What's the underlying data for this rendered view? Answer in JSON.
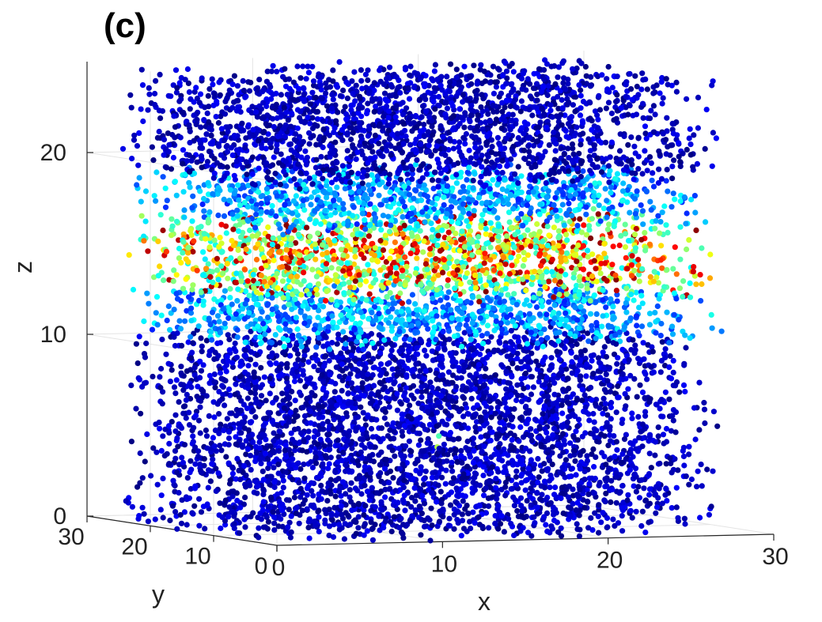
{
  "panel_label": "(c)",
  "chart_data": {
    "type": "scatter",
    "subtype": "3d-scatter",
    "title": "",
    "xlabel": "x",
    "ylabel": "y",
    "zlabel": "z",
    "xlim": [
      0,
      30
    ],
    "ylim": [
      0,
      30
    ],
    "zlim": [
      0,
      25
    ],
    "x_ticks": [
      "0",
      "10",
      "20",
      "30"
    ],
    "y_ticks": [
      "0",
      "10",
      "20",
      "30"
    ],
    "z_ticks": [
      "0",
      "10",
      "20"
    ],
    "grid": true,
    "colormap": "jet",
    "colormap_colors": [
      "#00007f",
      "#0000ff",
      "#007fff",
      "#00ffff",
      "#7fff7f",
      "#ffff00",
      "#ff7f00",
      "#ff0000",
      "#7f0000"
    ],
    "cloud_extent": {
      "x": [
        0,
        27
      ],
      "y": [
        0,
        25
      ],
      "z": [
        0,
        25
      ]
    },
    "band": {
      "z_center": 15,
      "z_half_width": 2,
      "description_level": "high"
    },
    "isolated_points": [
      {
        "x": 13.6,
        "y": 10,
        "z": 5.2,
        "level": 0.45
      },
      {
        "x": 13.5,
        "y": 10,
        "z": 4.6,
        "level": 0.55
      }
    ]
  }
}
